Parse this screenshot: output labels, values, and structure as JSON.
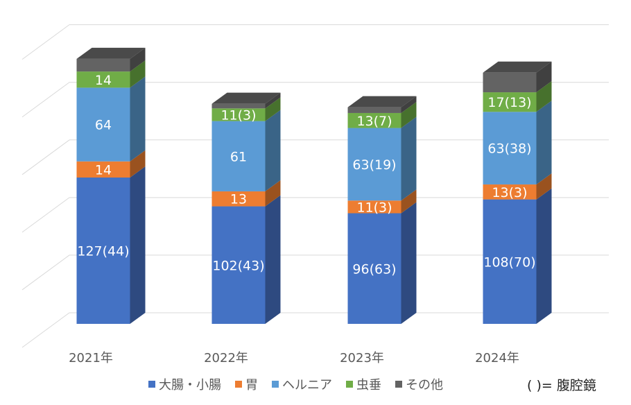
{
  "chart_data": {
    "type": "bar",
    "stacked": true,
    "style": "3d-column",
    "title": "",
    "xlabel": "",
    "ylabel": "",
    "ylim": [
      0,
      250
    ],
    "grid": true,
    "categories": [
      "2021年",
      "2022年",
      "2023年",
      "2024年"
    ],
    "series": [
      {
        "name": "大腸・小腸",
        "color": "#4472C4",
        "side": "#2E4A80",
        "values": [
          127,
          102,
          96,
          108
        ],
        "labels": [
          "127(44)",
          "102(43)",
          "96(63)",
          "108(70)"
        ]
      },
      {
        "name": "胃",
        "color": "#ED7D31",
        "side": "#9A521F",
        "values": [
          14,
          13,
          11,
          13
        ],
        "labels": [
          "14",
          "13",
          "11(3)",
          "13(3)"
        ]
      },
      {
        "name": "ヘルニア",
        "color": "#5B9BD5",
        "side": "#3A6487",
        "values": [
          64,
          61,
          63,
          63
        ],
        "labels": [
          "64",
          "61",
          "63(19)",
          "63(38)"
        ]
      },
      {
        "name": "虫垂",
        "color": "#70AD47",
        "side": "#47712D",
        "values": [
          14,
          11,
          13,
          17
        ],
        "labels": [
          "14",
          "11(3)",
          "13(7)",
          "17(13)"
        ]
      },
      {
        "name": "その他",
        "color": "#636363",
        "side": "#404040",
        "values": [
          11,
          4,
          5,
          17
        ],
        "labels": [
          "",
          "",
          "",
          ""
        ]
      }
    ],
    "legend_position": "bottom",
    "annotation": "（ ）= 腹腔鏡"
  },
  "legend_note": "(  )= 腹腔鏡"
}
